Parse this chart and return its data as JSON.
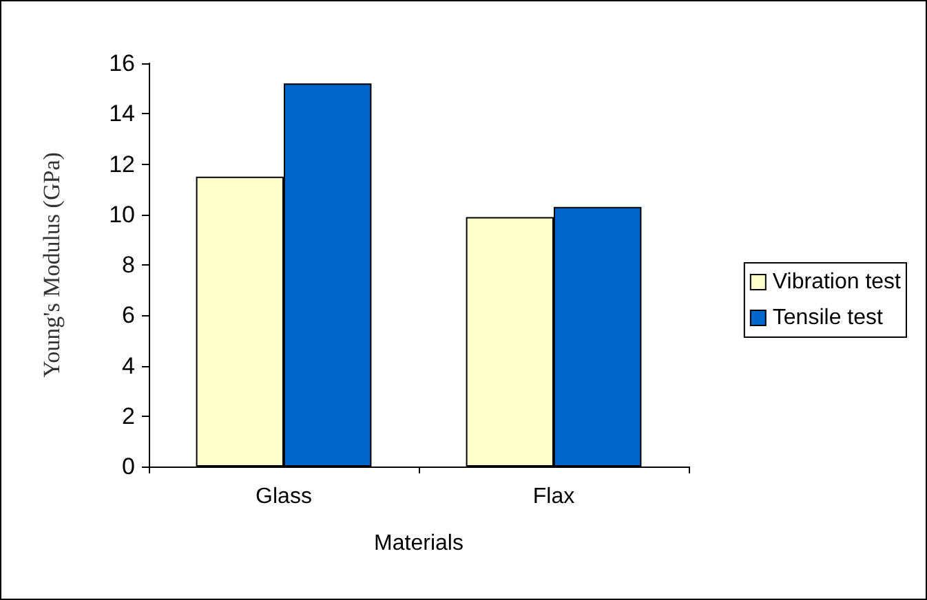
{
  "chart_data": {
    "type": "bar",
    "xlabel": "Materials",
    "ylabel": "Young's Modulus (GPa)",
    "categories": [
      "Glass",
      "Flax"
    ],
    "series": [
      {
        "name": "Vibration test",
        "color": "#ffffcc",
        "values": [
          11.5,
          9.9
        ]
      },
      {
        "name": "Tensile test",
        "color": "#0066cc",
        "values": [
          15.2,
          10.3
        ]
      }
    ],
    "ylim": [
      0,
      16
    ],
    "yticks": [
      0,
      2,
      4,
      6,
      8,
      10,
      12,
      14,
      16
    ],
    "grid": false,
    "legend": "right"
  }
}
